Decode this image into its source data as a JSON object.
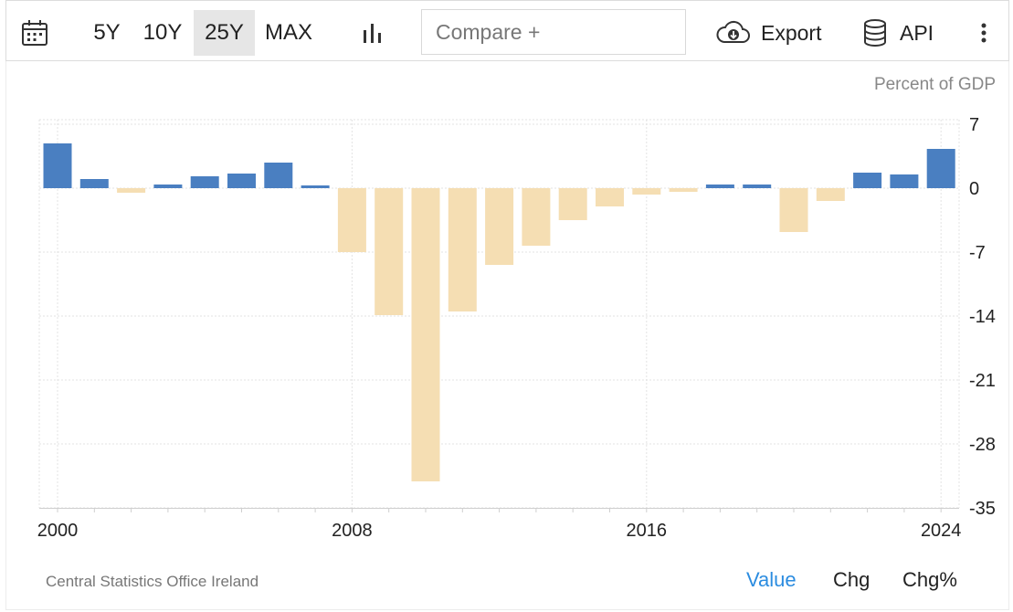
{
  "toolbar": {
    "calendar_icon": "calendar-icon",
    "ranges": [
      {
        "label": "5Y",
        "active": false
      },
      {
        "label": "10Y",
        "active": false
      },
      {
        "label": "25Y",
        "active": true
      },
      {
        "label": "MAX",
        "active": false
      }
    ],
    "chart_type_icon": "bar-chart-icon",
    "compare_placeholder": "Compare +",
    "export_label": "Export",
    "export_icon": "cloud-download-icon",
    "api_label": "API",
    "api_icon": "database-icon",
    "more_icon": "vertical-dots-icon"
  },
  "colors": {
    "positive": "#4a7fc1",
    "negative": "#f5deb3",
    "active_tab": "#2b8ce0"
  },
  "chart_data": {
    "type": "bar",
    "unit_label": "Percent of GDP",
    "x": [
      2000,
      2001,
      2002,
      2003,
      2004,
      2005,
      2006,
      2007,
      2008,
      2009,
      2010,
      2011,
      2012,
      2013,
      2014,
      2015,
      2016,
      2017,
      2018,
      2019,
      2020,
      2021,
      2022,
      2023,
      2024
    ],
    "values": [
      4.9,
      1.0,
      -0.5,
      0.4,
      1.3,
      1.6,
      2.8,
      0.3,
      -7.0,
      -13.9,
      -32.1,
      -13.5,
      -8.4,
      -6.3,
      -3.5,
      -2.0,
      -0.7,
      -0.4,
      0.4,
      0.4,
      -4.8,
      -1.4,
      1.7,
      1.5,
      4.3
    ],
    "x_tick_labels": [
      "2000",
      "2008",
      "2016",
      "2024"
    ],
    "y_ticks": [
      7,
      0,
      -7,
      -14,
      -21,
      -28,
      -35
    ],
    "ylim": [
      -35,
      7.5
    ],
    "grid": true,
    "y_axis_side": "right"
  },
  "footer": {
    "source": "Central Statistics Office Ireland",
    "tabs": [
      {
        "label": "Value",
        "active": true
      },
      {
        "label": "Chg",
        "active": false
      },
      {
        "label": "Chg%",
        "active": false
      }
    ]
  }
}
